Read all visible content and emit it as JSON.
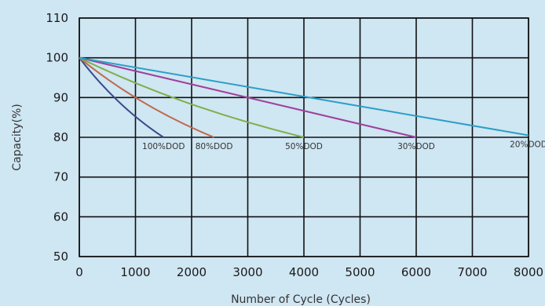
{
  "chart_data": {
    "type": "line",
    "title": "",
    "xlabel": "Number of Cycle (Cycles)",
    "ylabel": "Capacity(%)",
    "xlim": [
      0,
      8000
    ],
    "ylim": [
      50,
      110
    ],
    "xticks": [
      0,
      1000,
      2000,
      3000,
      4000,
      5000,
      6000,
      7000,
      8000
    ],
    "yticks": [
      50,
      60,
      70,
      80,
      90,
      100,
      110
    ],
    "grid": true,
    "series": [
      {
        "name": "100%DOD",
        "color": "#3a4a8a",
        "x": [
          0,
          1500
        ],
        "y": [
          100,
          80
        ],
        "curve": "convex"
      },
      {
        "name": "80%DOD",
        "color": "#c06a4a",
        "x": [
          0,
          2400
        ],
        "y": [
          100,
          80
        ],
        "curve": "convex"
      },
      {
        "name": "50%DOD",
        "color": "#7fb04a",
        "x": [
          0,
          4000
        ],
        "y": [
          100,
          80
        ],
        "curve": "convex"
      },
      {
        "name": "30%DOD",
        "color": "#a0409a",
        "x": [
          0,
          6000
        ],
        "y": [
          100,
          80
        ],
        "curve": "straight"
      },
      {
        "name": "20%DOD",
        "color": "#2a9fc8",
        "x": [
          0,
          8000
        ],
        "y": [
          100,
          80.5
        ],
        "curve": "straight"
      }
    ]
  }
}
